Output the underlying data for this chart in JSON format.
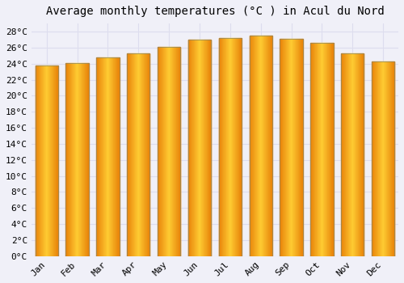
{
  "title": "Average monthly temperatures (°C ) in Acul du Nord",
  "months": [
    "Jan",
    "Feb",
    "Mar",
    "Apr",
    "May",
    "Jun",
    "Jul",
    "Aug",
    "Sep",
    "Oct",
    "Nov",
    "Dec"
  ],
  "values": [
    23.8,
    24.1,
    24.8,
    25.3,
    26.1,
    27.0,
    27.2,
    27.5,
    27.1,
    26.6,
    25.3,
    24.3
  ],
  "bar_color_left": "#E8820A",
  "bar_color_center": "#FFCC33",
  "bar_color_right": "#E8820A",
  "bar_edge_color": "#888866",
  "ylim": [
    0,
    29
  ],
  "yticks": [
    0,
    2,
    4,
    6,
    8,
    10,
    12,
    14,
    16,
    18,
    20,
    22,
    24,
    26,
    28
  ],
  "background_color": "#F0F0F8",
  "plot_bg_color": "#F0F0F8",
  "grid_color": "#DDDDEE",
  "title_fontsize": 10,
  "tick_fontsize": 8,
  "font_family": "monospace",
  "bar_width": 0.75
}
